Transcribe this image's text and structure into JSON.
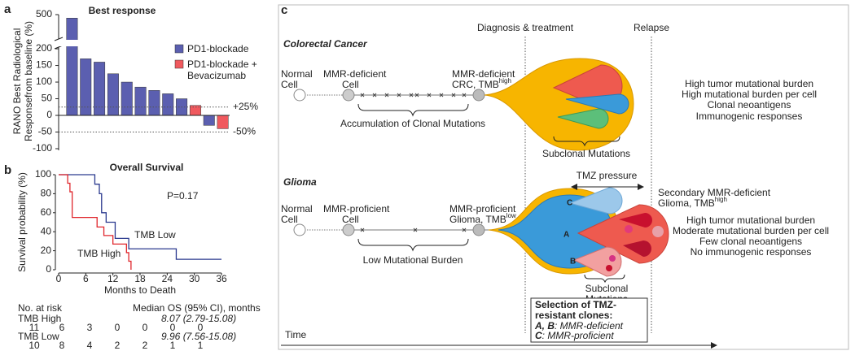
{
  "chart_data": [
    {
      "type": "bar",
      "panel": "a",
      "title": "Best response",
      "ylabel": [
        "RANO Best Radiological",
        "Responsefrom baseline (%)"
      ],
      "categories": [
        null,
        null,
        null,
        null,
        null,
        null,
        null,
        null,
        null,
        null,
        null,
        null
      ],
      "series": [
        {
          "name": "PD1-blockade",
          "color": "#5b5fb0",
          "values": [
            490,
            170,
            160,
            125,
            100,
            85,
            75,
            65,
            50,
            null,
            -30,
            null
          ]
        },
        {
          "name": "PD1-blockade + Bevacizumab",
          "color": "#f0595e",
          "values": [
            null,
            null,
            null,
            null,
            null,
            null,
            null,
            null,
            null,
            30,
            null,
            -40
          ]
        }
      ],
      "ylim": [
        -100,
        500
      ],
      "ybreak": [
        205,
        430
      ],
      "yticks": [
        -100,
        -50,
        0,
        50,
        100,
        150,
        200,
        500
      ],
      "reference_lines": [
        {
          "value": 25,
          "label": "+25%"
        },
        {
          "value": -50,
          "label": "-50%"
        }
      ],
      "legend": "upper right"
    },
    {
      "type": "line",
      "drawstyle": "steps-post",
      "panel": "b",
      "title": "Overall Survival",
      "xlabel": "Months to Death",
      "ylabel": "Survival probability (%)",
      "annotation": "P=0.17",
      "series": [
        {
          "name": "TMB Low",
          "color": "#2b3a8f",
          "x": [
            0,
            8,
            9,
            9.5,
            10.5,
            12.5,
            15.5,
            26,
            36
          ],
          "values": [
            100,
            90,
            80,
            60,
            50,
            33,
            22,
            11,
            11
          ]
        },
        {
          "name": "TMB High",
          "color": "#e0262c",
          "x": [
            0,
            2,
            2.5,
            3,
            8.5,
            10,
            12,
            15,
            15.5,
            16
          ],
          "values": [
            100,
            91,
            82,
            55,
            45,
            36,
            27,
            18,
            9,
            0
          ]
        }
      ],
      "xlim": [
        0,
        36
      ],
      "xticks": [
        0,
        6,
        12,
        18,
        24,
        30,
        36
      ],
      "ylim": [
        0,
        100
      ],
      "yticks": [
        0,
        20,
        40,
        60,
        80,
        100
      ],
      "risk_table": {
        "header": "No. at risk",
        "median_header": "Median OS (95% CI), months",
        "rows": [
          {
            "name": "TMB High",
            "median": "8.07 (2.79-15.08)",
            "counts": [
              "11",
              "6",
              "3",
              "0",
              "0",
              "0",
              "0"
            ]
          },
          {
            "name": "TMB Low",
            "median": "9.96 (7.56-15.08)",
            "counts": [
              "10",
              "8",
              "4",
              "2",
              "2",
              "1",
              "1"
            ]
          }
        ]
      }
    }
  ],
  "diagram": {
    "panel": "c",
    "phases": [
      "Diagnosis & treatment",
      "Relapse"
    ],
    "crc": {
      "title": "Colorectal Cancer",
      "normal": [
        "Normal",
        "Cell"
      ],
      "deficient": [
        "MMR-deficient",
        "Cell"
      ],
      "tumor": {
        "lines": [
          "MMR-deficient",
          "CRC, TMB"
        ],
        "sup": "high"
      },
      "brace_label": "Accumulation of Clonal Mutations",
      "subclonal": "Subclonal Mutations",
      "features": [
        "High tumor mutational burden",
        "High mutational burden per cell",
        "Clonal neoantigens",
        "Immunogenic responses"
      ]
    },
    "glioma": {
      "title": "Glioma",
      "normal": [
        "Normal",
        "Cell"
      ],
      "proficient": [
        "MMR-proficient",
        "Cell"
      ],
      "tumor": {
        "lines": [
          "MMR-proficient",
          "Glioma, TMB"
        ],
        "sup": "low"
      },
      "brace_label": "Low Mutational Burden",
      "pressure": "TMZ pressure",
      "clones": [
        "A",
        "B",
        "C"
      ],
      "subclonal": [
        "Subclonal",
        "Mutations"
      ],
      "relapse": {
        "lines": [
          "Secondary MMR-deficient",
          "Glioma, TMB"
        ],
        "sup": "high"
      },
      "features": [
        "High tumor mutational burden",
        "Moderate mutational burden per cell",
        "Few clonal neoantigens",
        "No immunogenic responses"
      ]
    },
    "selection": {
      "title": [
        "Selection of TMZ-",
        "resistant clones:"
      ],
      "items": [
        {
          "key": "A, B",
          "text": ": MMR-deficient"
        },
        {
          "key": "C",
          "text": ": MMR-proficient"
        }
      ]
    },
    "time": "Time"
  }
}
